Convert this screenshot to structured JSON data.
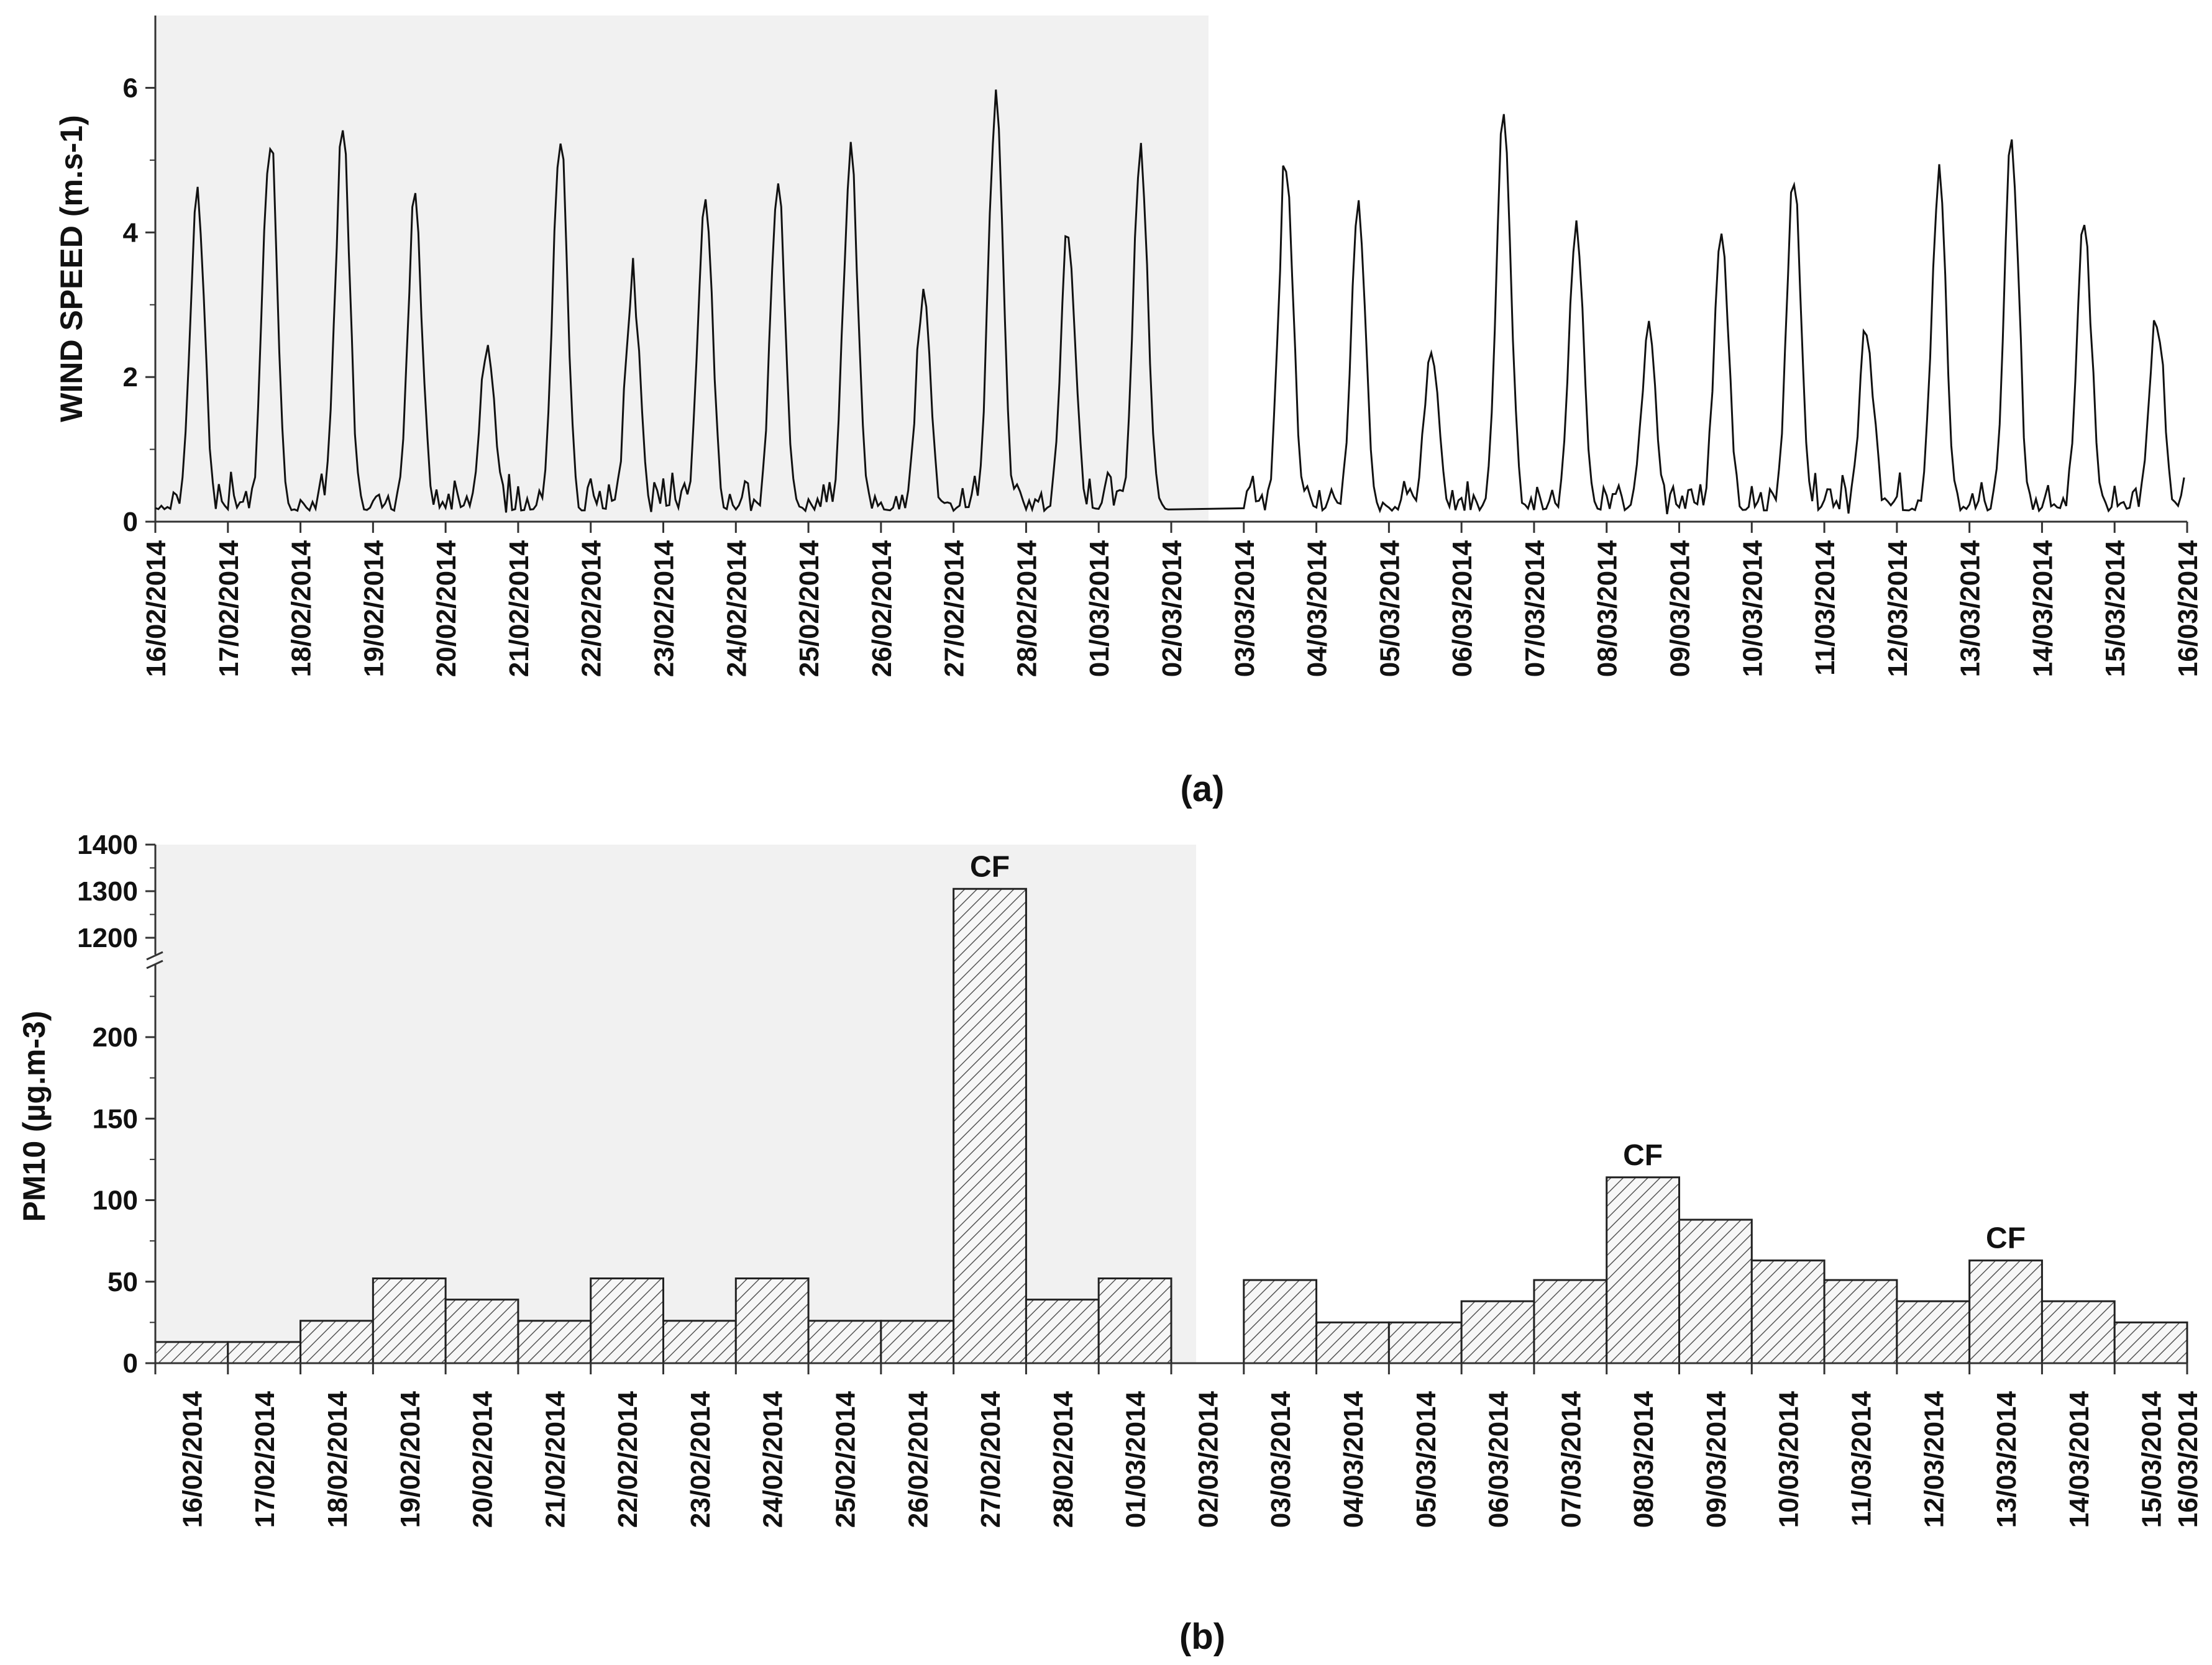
{
  "dates": [
    "16/02/2014",
    "17/02/2014",
    "18/02/2014",
    "19/02/2014",
    "20/02/2014",
    "21/02/2014",
    "22/02/2014",
    "23/02/2014",
    "24/02/2014",
    "25/02/2014",
    "26/02/2014",
    "27/02/2014",
    "28/02/2014",
    "01/03/2014",
    "02/03/2014",
    "03/03/2014",
    "04/03/2014",
    "05/03/2014",
    "06/03/2014",
    "07/03/2014",
    "08/03/2014",
    "09/03/2014",
    "10/03/2014",
    "11/03/2014",
    "12/03/2014",
    "13/03/2014",
    "14/03/2014",
    "15/03/2014",
    "16/03/2014"
  ],
  "colors": {
    "shade": "#f1f1f1",
    "line": "#111111",
    "bar_fill": "#f7f7f7",
    "hatch": "#555555",
    "axis": "#333333"
  },
  "chart_data": [
    {
      "type": "line",
      "panel_label": "(a)",
      "ylabel": "WIND SPEED (m.s-1)",
      "ylim": [
        0,
        7
      ],
      "yticks": [
        0,
        2,
        4,
        6
      ],
      "x_unit": "date",
      "shaded_range": [
        "16/02/2014",
        "02/03/2014"
      ],
      "grid": false,
      "daily_peaks": [
        {
          "date": "16/02/2014",
          "peak": 4.4
        },
        {
          "date": "17/02/2014",
          "peak": 5.35
        },
        {
          "date": "18/02/2014",
          "peak": 5.3
        },
        {
          "date": "19/02/2014",
          "peak": 4.25
        },
        {
          "date": "20/02/2014",
          "peak": 2.45
        },
        {
          "date": "21/02/2014",
          "peak": 5.25
        },
        {
          "date": "22/02/2014",
          "peak": 3.35
        },
        {
          "date": "23/02/2014",
          "peak": 4.55
        },
        {
          "date": "24/02/2014",
          "peak": 4.65
        },
        {
          "date": "25/02/2014",
          "peak": 5.0
        },
        {
          "date": "26/02/2014",
          "peak": 3.0
        },
        {
          "date": "27/02/2014",
          "peak": 5.75
        },
        {
          "date": "28/02/2014",
          "peak": 3.8
        },
        {
          "date": "01/03/2014",
          "peak": 5.0
        },
        {
          "date": "03/03/2014",
          "peak": 4.9
        },
        {
          "date": "04/03/2014",
          "peak": 4.25
        },
        {
          "date": "05/03/2014",
          "peak": 2.35
        },
        {
          "date": "06/03/2014",
          "peak": 5.6
        },
        {
          "date": "07/03/2014",
          "peak": 3.95
        },
        {
          "date": "08/03/2014",
          "peak": 2.65
        },
        {
          "date": "09/03/2014",
          "peak": 3.9
        },
        {
          "date": "10/03/2014",
          "peak": 4.5
        },
        {
          "date": "11/03/2014",
          "peak": 2.6
        },
        {
          "date": "12/03/2014",
          "peak": 4.65
        },
        {
          "date": "13/03/2014",
          "peak": 5.25
        },
        {
          "date": "14/03/2014",
          "peak": 4.1
        },
        {
          "date": "15/03/2014",
          "peak": 2.7
        }
      ]
    },
    {
      "type": "bar",
      "panel_label": "(b)",
      "ylabel": "PM10  (µg.m-3)",
      "ylim": [
        0,
        1400
      ],
      "axis_break": [
        240,
        1180
      ],
      "yticks_lower": [
        0,
        50,
        100,
        150,
        200
      ],
      "yticks_upper": [
        1200,
        1300,
        1400
      ],
      "shaded_range": [
        "16/02/2014",
        "02/03/2014"
      ],
      "grid": false,
      "categories": [
        "16/02/2014",
        "17/02/2014",
        "18/02/2014",
        "19/02/2014",
        "20/02/2014",
        "21/02/2014",
        "22/02/2014",
        "23/02/2014",
        "24/02/2014",
        "25/02/2014",
        "26/02/2014",
        "27/02/2014",
        "28/02/2014",
        "01/03/2014",
        "02/03/2014",
        "03/03/2014",
        "04/03/2014",
        "05/03/2014",
        "06/03/2014",
        "07/03/2014",
        "08/03/2014",
        "09/03/2014",
        "10/03/2014",
        "11/03/2014",
        "12/03/2014",
        "13/03/2014",
        "14/03/2014",
        "15/03/2014"
      ],
      "values": [
        13,
        13,
        26,
        52,
        39,
        26,
        52,
        26,
        52,
        26,
        26,
        1305,
        39,
        52,
        null,
        51,
        25,
        25,
        38,
        51,
        114,
        88,
        63,
        51,
        38,
        63,
        38,
        25
      ],
      "annotations": [
        {
          "category": "27/02/2014",
          "text": "CF"
        },
        {
          "category": "08/03/2014",
          "text": "CF"
        },
        {
          "category": "13/03/2014",
          "text": "CF"
        }
      ]
    }
  ]
}
